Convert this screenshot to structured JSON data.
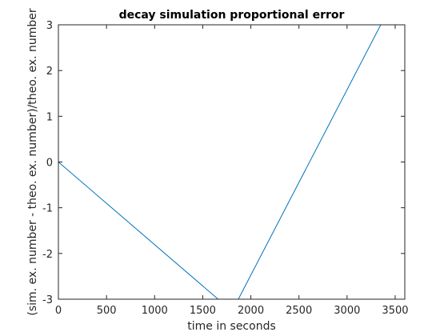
{
  "chart_data": {
    "type": "line",
    "title": "decay simulation proportional error",
    "xlabel": "time in seconds",
    "ylabel": "(sim. ex. number - theo. ex. number)/theo. ex. number",
    "xlim": [
      0,
      3600
    ],
    "ylim": [
      -3,
      3
    ],
    "xticks": [
      0,
      500,
      1000,
      1500,
      2000,
      2500,
      3000,
      3500
    ],
    "yticks": [
      -3,
      -2,
      -1,
      0,
      1,
      2,
      3
    ],
    "grid": false,
    "series": [
      {
        "color": "#0072bd",
        "x": [
          0,
          1660,
          1870,
          3350
        ],
        "y": [
          0,
          -3,
          -3,
          3
        ]
      }
    ]
  }
}
